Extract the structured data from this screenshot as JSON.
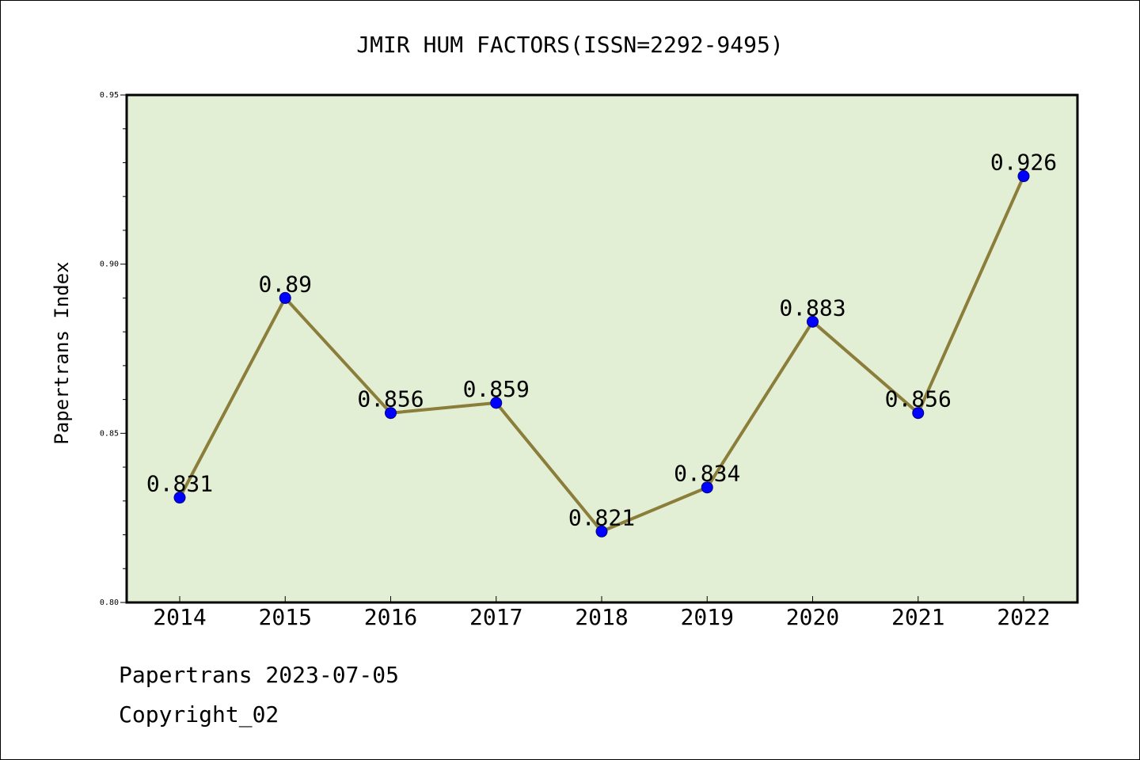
{
  "chart_data": {
    "type": "line",
    "title": "JMIR HUM FACTORS(ISSN=2292-9495)",
    "xlabel": "",
    "ylabel": "Papertrans Index",
    "categories": [
      "2014",
      "2015",
      "2016",
      "2017",
      "2018",
      "2019",
      "2020",
      "2021",
      "2022"
    ],
    "values": [
      0.831,
      0.89,
      0.856,
      0.859,
      0.821,
      0.834,
      0.883,
      0.856,
      0.926
    ],
    "data_labels": [
      "0.831",
      "0.89",
      "0.856",
      "0.859",
      "0.821",
      "0.834",
      "0.883",
      "0.856",
      "0.926"
    ],
    "ylim": [
      0.8,
      0.95
    ],
    "yticks": [
      "0.80",
      "0.85",
      "0.90",
      "0.95"
    ],
    "grid": false,
    "colors": {
      "plot_background": "#e2efd4",
      "line": "#8b7d3a",
      "marker": "#0000ff"
    }
  },
  "footer": {
    "source": "Papertrans 2023-07-05",
    "copyright": "Copyright_02"
  }
}
